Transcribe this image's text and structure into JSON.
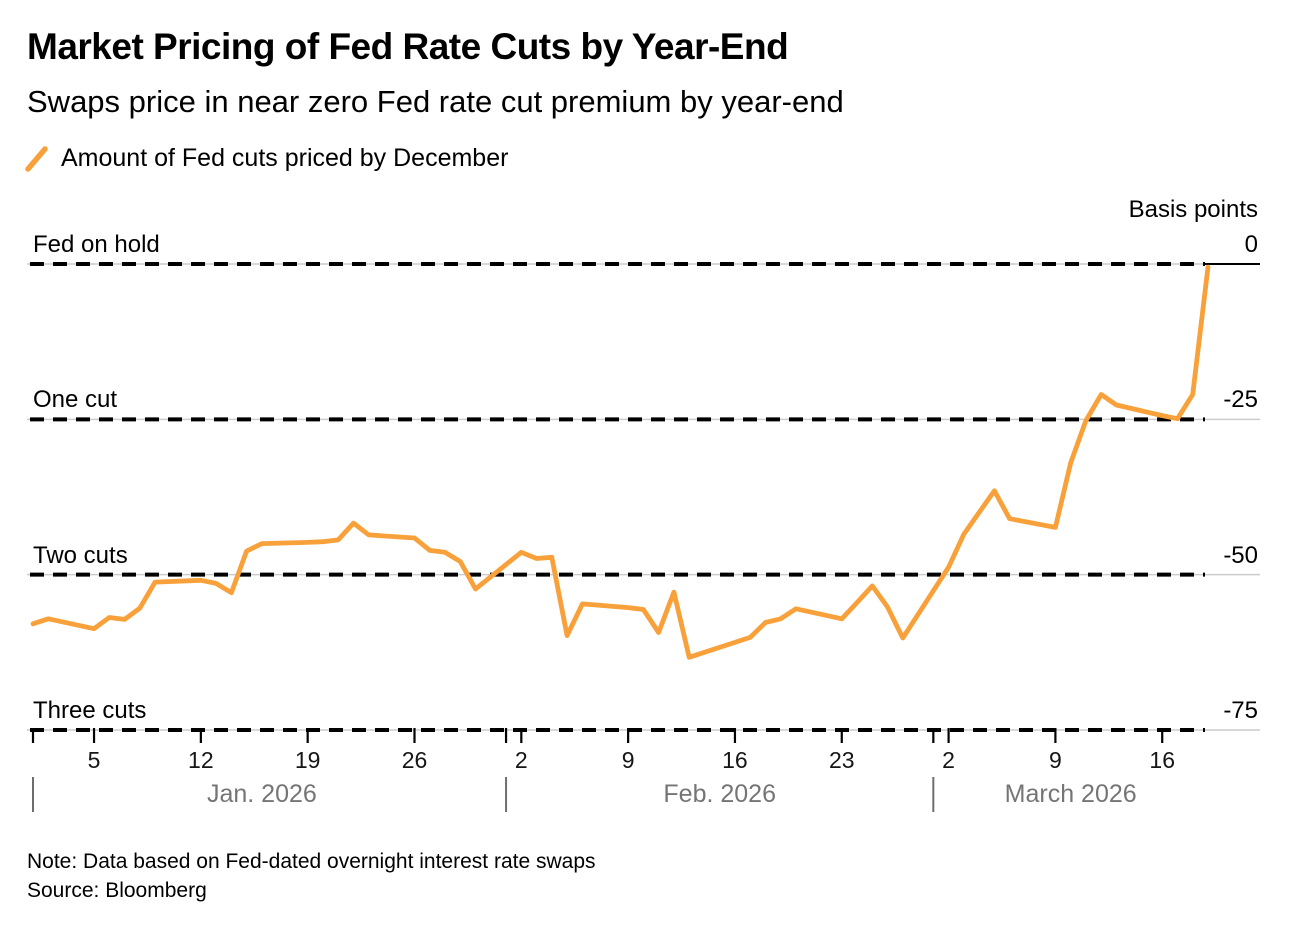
{
  "header": {
    "title": "Market Pricing of Fed Rate Cuts by Year-End",
    "subtitle": "Swaps price in near zero Fed rate cut premium by year-end"
  },
  "legend": {
    "label": "Amount of Fed cuts priced by December"
  },
  "footer": {
    "note": "Note: Data based on Fed-dated overnight interest rate swaps",
    "source": "Source: Bloomberg"
  },
  "colors": {
    "line": "#F8A13B",
    "dash": "#000000",
    "grid": "#CCCCCC",
    "axis_text": "#161616",
    "month_text": "#757575",
    "divider": "#6E6E6E"
  },
  "chart_data": {
    "type": "line",
    "unit_label": "Basis points",
    "x_range": [
      "2026-01-01",
      "2026-03-19"
    ],
    "y_range": [
      -75,
      0
    ],
    "grid": "dashed-horizontal",
    "legend_position": "top-left",
    "gridlines": [
      {
        "value": 0,
        "label_left": "Fed on hold",
        "label_right": "0"
      },
      {
        "value": -25,
        "label_left": "One cut",
        "label_right": "-25"
      },
      {
        "value": -50,
        "label_left": "Two cuts",
        "label_right": "-50"
      },
      {
        "value": -75,
        "label_left": "Three cuts",
        "label_right": "-75"
      }
    ],
    "x_ticks": [
      {
        "date": "2026-01-05",
        "label": "5"
      },
      {
        "date": "2026-01-12",
        "label": "12"
      },
      {
        "date": "2026-01-19",
        "label": "19"
      },
      {
        "date": "2026-01-26",
        "label": "26"
      },
      {
        "date": "2026-02-02",
        "label": "2"
      },
      {
        "date": "2026-02-09",
        "label": "9"
      },
      {
        "date": "2026-02-16",
        "label": "16"
      },
      {
        "date": "2026-02-23",
        "label": "23"
      },
      {
        "date": "2026-03-02",
        "label": "2"
      },
      {
        "date": "2026-03-09",
        "label": "9"
      },
      {
        "date": "2026-03-16",
        "label": "16"
      }
    ],
    "month_dividers": [
      "2026-01-01",
      "2026-02-01",
      "2026-03-01"
    ],
    "months": [
      {
        "label": "Jan. 2026",
        "center_date": "2026-01-16"
      },
      {
        "label": "Feb. 2026",
        "center_date": "2026-02-15"
      },
      {
        "label": "March 2026",
        "center_date": "2026-03-10"
      }
    ],
    "series": [
      {
        "name": "Amount of Fed cuts priced by December",
        "color": "#F8A13B",
        "points": [
          [
            "2026-01-01",
            -57.9
          ],
          [
            "2026-01-02",
            -57.1
          ],
          [
            "2026-01-05",
            -58.7
          ],
          [
            "2026-01-06",
            -56.9
          ],
          [
            "2026-01-07",
            -57.2
          ],
          [
            "2026-01-08",
            -55.4
          ],
          [
            "2026-01-09",
            -51.2
          ],
          [
            "2026-01-12",
            -50.9
          ],
          [
            "2026-01-13",
            -51.4
          ],
          [
            "2026-01-14",
            -52.9
          ],
          [
            "2026-01-15",
            -46.2
          ],
          [
            "2026-01-16",
            -45.0
          ],
          [
            "2026-01-19",
            -44.8
          ],
          [
            "2026-01-20",
            -44.7
          ],
          [
            "2026-01-21",
            -44.4
          ],
          [
            "2026-01-22",
            -41.7
          ],
          [
            "2026-01-23",
            -43.6
          ],
          [
            "2026-01-26",
            -44.1
          ],
          [
            "2026-01-27",
            -46.1
          ],
          [
            "2026-01-28",
            -46.4
          ],
          [
            "2026-01-29",
            -47.9
          ],
          [
            "2026-01-30",
            -52.3
          ],
          [
            "2026-02-02",
            -46.4
          ],
          [
            "2026-02-03",
            -47.4
          ],
          [
            "2026-02-04",
            -47.2
          ],
          [
            "2026-02-05",
            -59.8
          ],
          [
            "2026-02-06",
            -54.7
          ],
          [
            "2026-02-09",
            -55.3
          ],
          [
            "2026-02-10",
            -55.6
          ],
          [
            "2026-02-11",
            -59.3
          ],
          [
            "2026-02-12",
            -52.8
          ],
          [
            "2026-02-13",
            -63.3
          ],
          [
            "2026-02-16",
            -60.9
          ],
          [
            "2026-02-17",
            -60.1
          ],
          [
            "2026-02-18",
            -57.7
          ],
          [
            "2026-02-19",
            -57.1
          ],
          [
            "2026-02-20",
            -55.5
          ],
          [
            "2026-02-23",
            -57.1
          ],
          [
            "2026-02-24",
            -54.5
          ],
          [
            "2026-02-25",
            -51.8
          ],
          [
            "2026-02-26",
            -55.2
          ],
          [
            "2026-02-27",
            -60.2
          ],
          [
            "2026-03-02",
            -48.8
          ],
          [
            "2026-03-03",
            -43.5
          ],
          [
            "2026-03-04",
            -40.0
          ],
          [
            "2026-03-05",
            -36.5
          ],
          [
            "2026-03-06",
            -41.0
          ],
          [
            "2026-03-09",
            -42.4
          ],
          [
            "2026-03-10",
            -32.0
          ],
          [
            "2026-03-11",
            -25.2
          ],
          [
            "2026-03-12",
            -21.0
          ],
          [
            "2026-03-13",
            -22.7
          ],
          [
            "2026-03-16",
            -24.4
          ],
          [
            "2026-03-17",
            -24.9
          ],
          [
            "2026-03-18",
            -21.0
          ],
          [
            "2026-03-19",
            -0.5
          ]
        ]
      }
    ]
  }
}
